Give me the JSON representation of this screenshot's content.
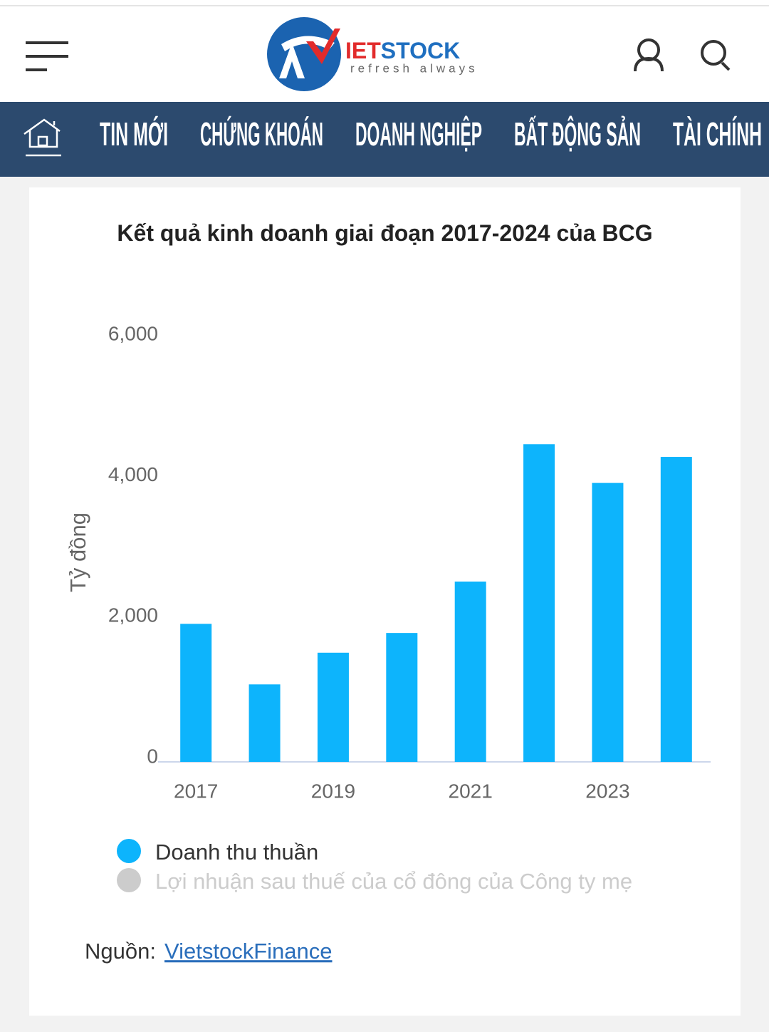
{
  "header": {
    "logo_text_red": "IET",
    "logo_text_blue": "STOCK",
    "tagline": "refresh always"
  },
  "nav": [
    "TIN MỚI",
    "CHỨNG KHOÁN",
    "DOANH NGHIỆP",
    "BẤT ĐỘNG SẢN",
    "TÀI CHÍNH"
  ],
  "chart_data": {
    "type": "bar",
    "title": "Kết quả kinh doanh giai đoạn 2017-2024 của BCG",
    "y_label": "Tỷ đồng",
    "categories": [
      "2017",
      null,
      "2019",
      null,
      "2021",
      null,
      "2023",
      null
    ],
    "series": [
      {
        "name": "Doanh thu thuần",
        "color": "#0db4fc",
        "values": [
          1960,
          1100,
          1550,
          1830,
          2560,
          4510,
          3960,
          4330
        ]
      },
      {
        "name": "Lợi nhuận sau thuế của cổ đông của Công ty mẹ",
        "color": "#cccccc",
        "hidden": true,
        "values": [
          null,
          null,
          null,
          null,
          null,
          null,
          null,
          null
        ]
      }
    ],
    "ylim": [
      0,
      6000
    ],
    "yticks": [
      0,
      {
        "value": 2000,
        "label": "2,000"
      },
      {
        "value": 4000,
        "label": "4,000"
      },
      {
        "value": 6000,
        "label": "6,000"
      }
    ],
    "grid": false
  },
  "source": {
    "label": "Nguồn:",
    "link": "VietstockFinance"
  }
}
